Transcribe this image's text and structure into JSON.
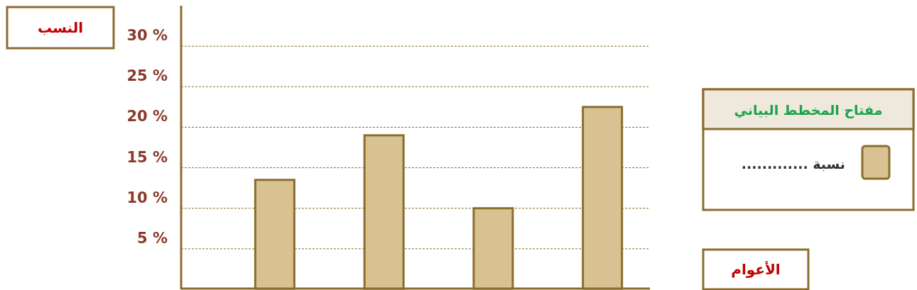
{
  "chart_data": {
    "type": "bar",
    "ylabel": "النسب",
    "annotations": [
      "الأعوام"
    ],
    "legend_title": "مفتاح المخطط البياني",
    "categories": [
      null,
      null,
      null,
      null
    ],
    "series": [
      {
        "name": "نسبة .............",
        "color": "#d9c291",
        "values": [
          13.5,
          19,
          10,
          22.5
        ]
      }
    ],
    "ylim": [
      0,
      35
    ],
    "yticks": [
      {
        "value": 5,
        "label": "5 %"
      },
      {
        "value": 10,
        "label": "10 %"
      },
      {
        "value": 15,
        "label": "15 %"
      },
      {
        "value": 20,
        "label": "20 %"
      },
      {
        "value": 25,
        "label": "25 %"
      },
      {
        "value": 30,
        "label": "30 %"
      }
    ],
    "grid": "y",
    "legend": "right"
  }
}
